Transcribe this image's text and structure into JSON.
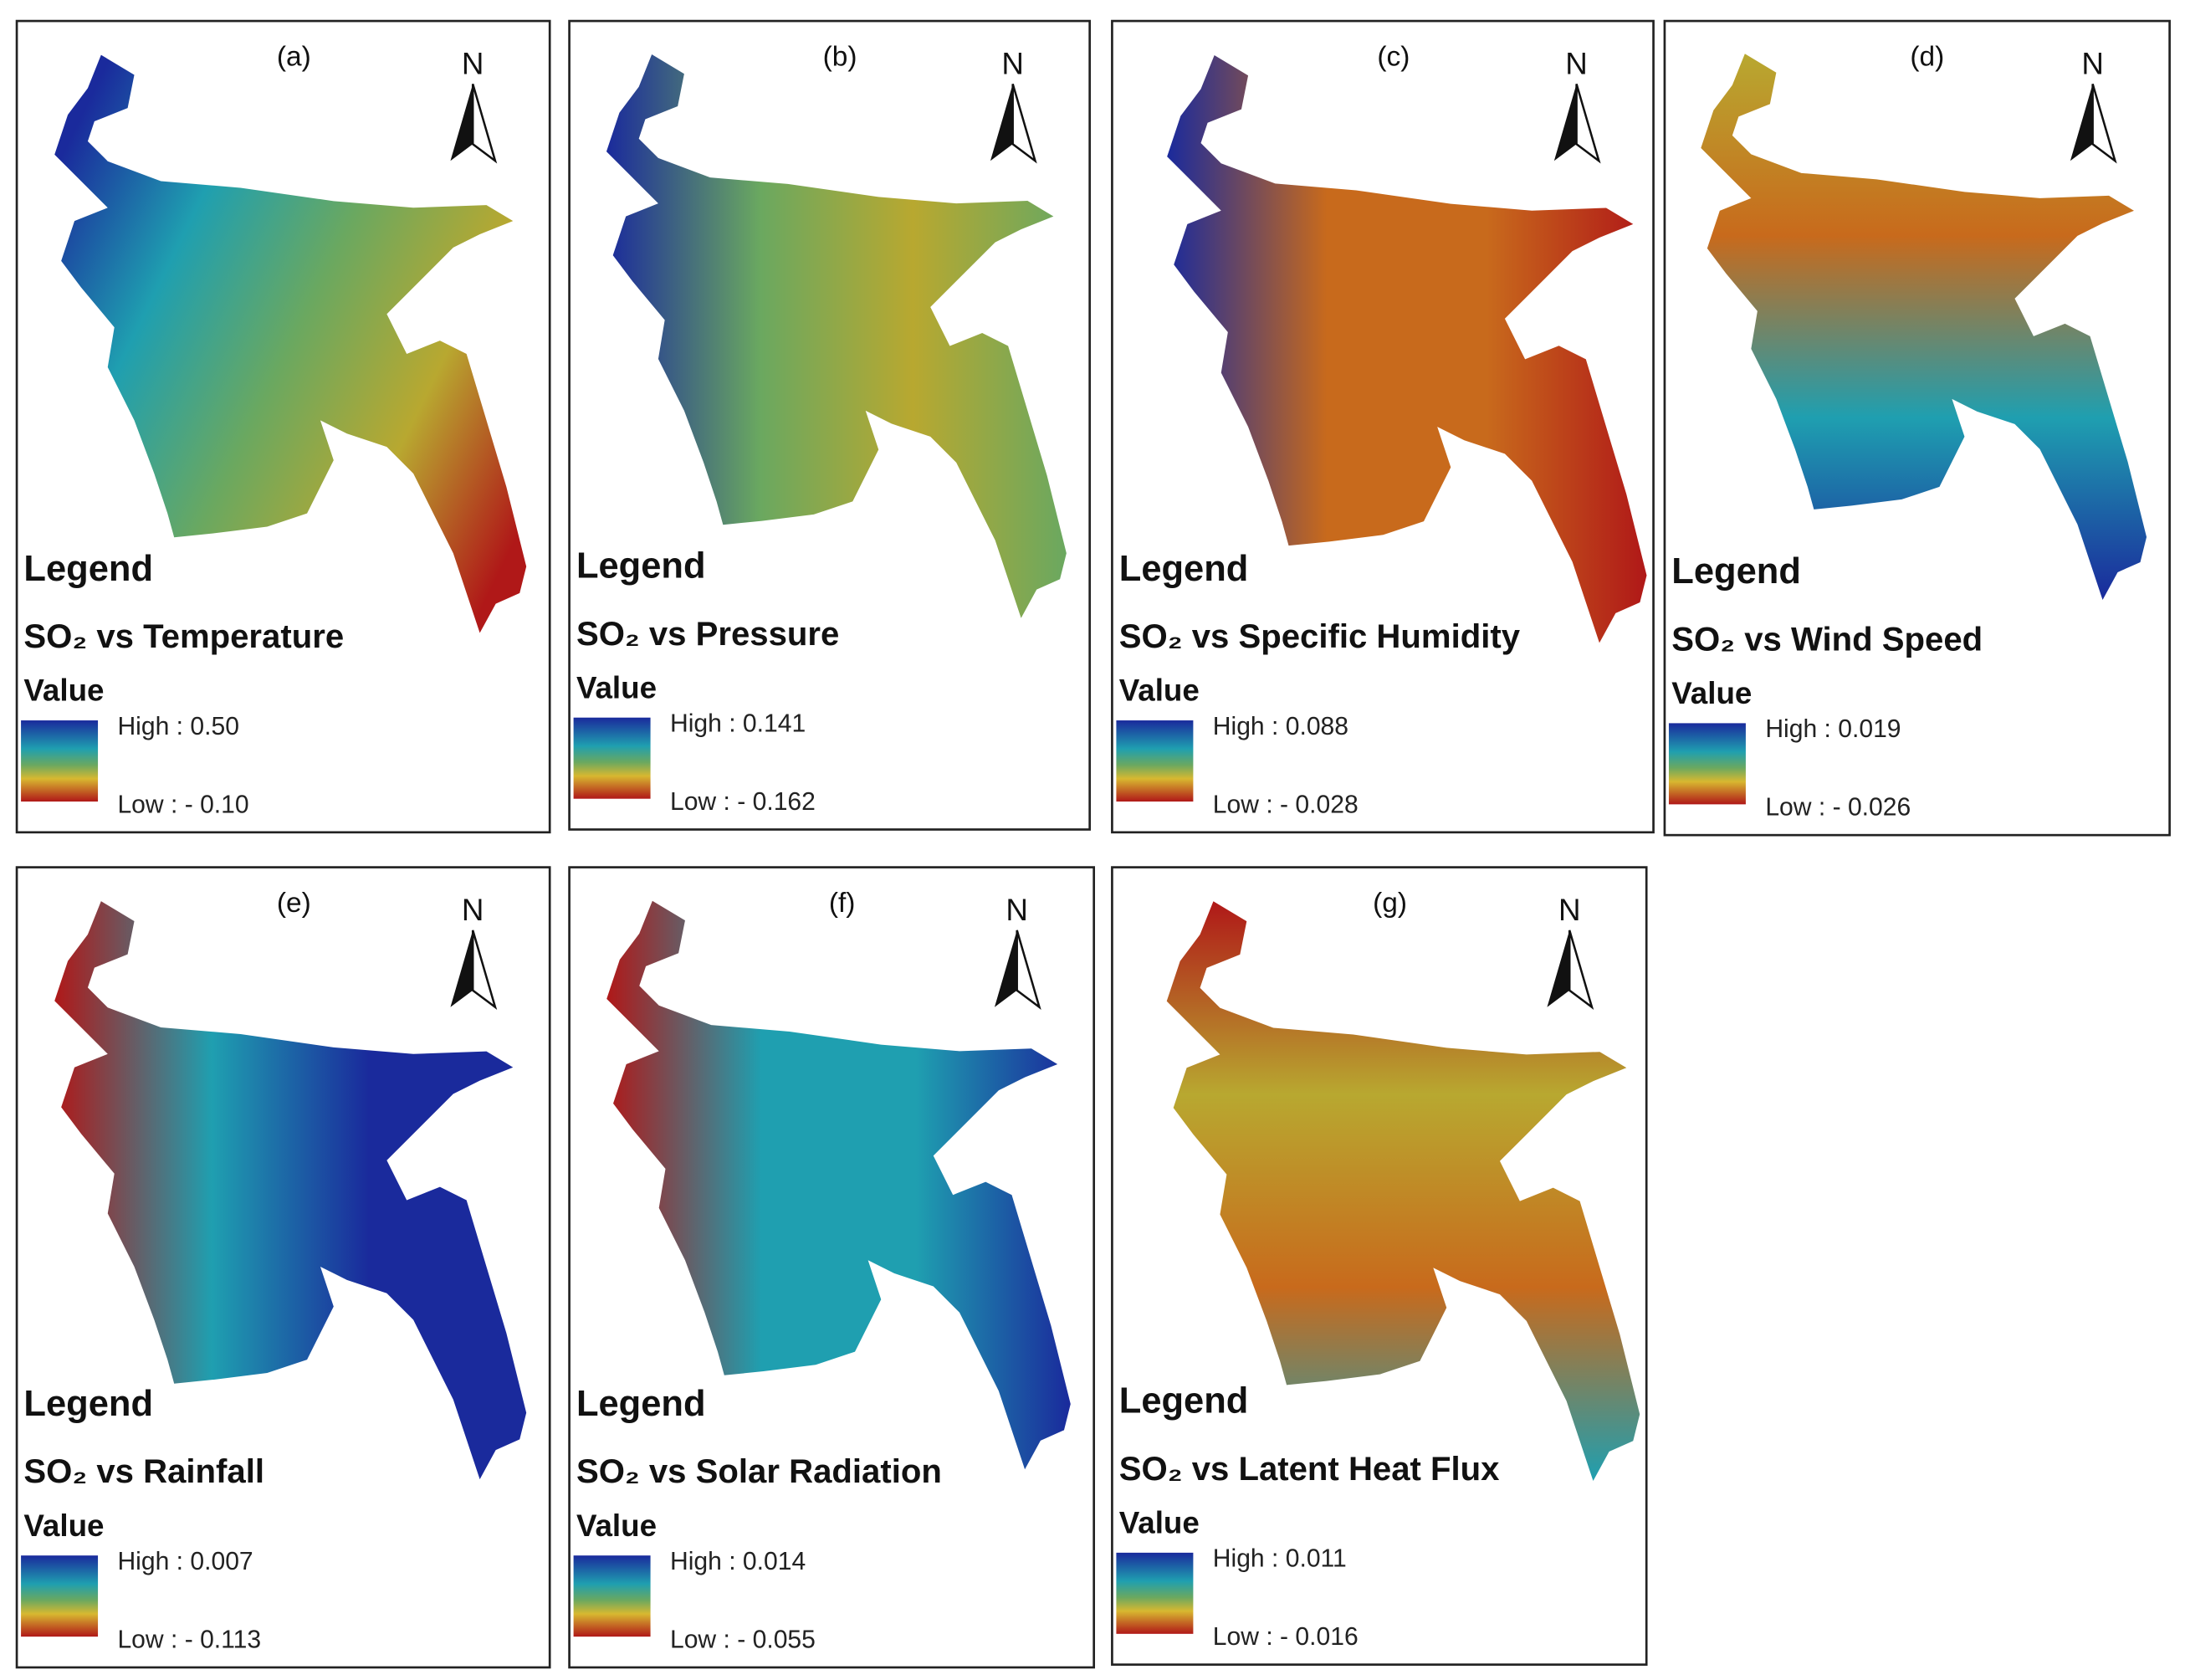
{
  "panels": [
    {
      "label": "(a)",
      "north": "N",
      "legend": "Legend",
      "title": "SO₂ vs Temperature",
      "value": "Value",
      "high": "High : 0.50",
      "low": "Low : - 0.10"
    },
    {
      "label": "(b)",
      "north": "N",
      "legend": "Legend",
      "title": "SO₂ vs Pressure",
      "value": "Value",
      "high": "High : 0.141",
      "low": "Low : - 0.162"
    },
    {
      "label": "(c)",
      "north": "N",
      "legend": "Legend",
      "title": "SO₂ vs Specific Humidity",
      "value": "Value",
      "high": "High : 0.088",
      "low": "Low : - 0.028"
    },
    {
      "label": "(d)",
      "north": "N",
      "legend": "Legend",
      "title": "SO₂ vs Wind Speed",
      "value": "Value",
      "high": "High : 0.019",
      "low": "Low : - 0.026"
    },
    {
      "label": "(e)",
      "north": "N",
      "legend": "Legend",
      "title": "SO₂ vs Rainfall",
      "value": "Value",
      "high": "High : 0.007",
      "low": "Low : - 0.113"
    },
    {
      "label": "(f)",
      "north": "N",
      "legend": "Legend",
      "title": "SO₂ vs Solar Radiation",
      "value": "Value",
      "high": "High : 0.014",
      "low": "Low : - 0.055"
    },
    {
      "label": "(g)",
      "north": "N",
      "legend": "Legend",
      "title": "SO₂ vs Latent Heat Flux",
      "value": "Value",
      "high": "High : 0.011",
      "low": "Low : - 0.016"
    }
  ]
}
